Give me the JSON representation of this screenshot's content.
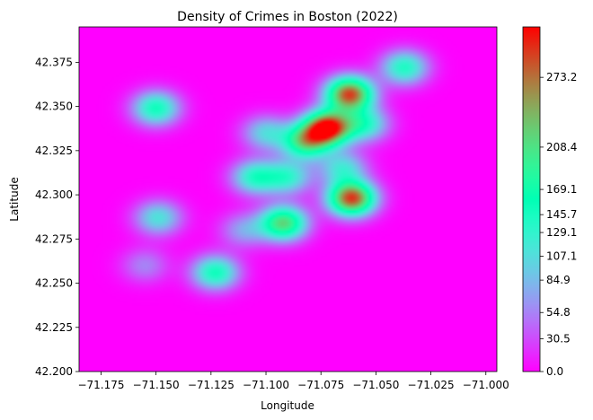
{
  "chart_data": {
    "type": "heatmap",
    "title": "Density of Crimes in Boston (2022)",
    "xlabel": "Longitude",
    "ylabel": "Latitude",
    "xlim": [
      -71.185,
      -70.995
    ],
    "ylim": [
      42.2,
      42.395
    ],
    "x_ticks": [
      -71.175,
      -71.15,
      -71.125,
      -71.1,
      -71.075,
      -71.05,
      -71.025,
      -71.0
    ],
    "x_tick_labels": [
      "−71.175",
      "−71.150",
      "−71.125",
      "−71.100",
      "−71.075",
      "−71.050",
      "−71.025",
      "−71.000"
    ],
    "y_ticks": [
      42.2,
      42.225,
      42.25,
      42.275,
      42.3,
      42.325,
      42.35,
      42.375
    ],
    "y_tick_labels": [
      "42.200",
      "42.225",
      "42.250",
      "42.275",
      "42.300",
      "42.325",
      "42.350",
      "42.375"
    ],
    "grid": false,
    "colormap": "rainbow",
    "colorbar": {
      "ticks": [
        0.0,
        30.5,
        54.8,
        84.9,
        107.1,
        129.1,
        145.7,
        169.1,
        208.4,
        273.2
      ],
      "tick_labels": [
        "0.0",
        "30.5",
        "54.8",
        "84.9",
        "107.1",
        "129.1",
        "145.7",
        "169.1",
        "208.4",
        "273.2"
      ],
      "max": 320
    },
    "density_peaks": [
      {
        "lon": -71.072,
        "lat": 42.338,
        "density": 320
      },
      {
        "lon": -71.062,
        "lat": 42.357,
        "density": 290
      },
      {
        "lon": -71.061,
        "lat": 42.298,
        "density": 295
      },
      {
        "lon": -71.092,
        "lat": 42.284,
        "density": 215
      },
      {
        "lon": -71.082,
        "lat": 42.33,
        "density": 195
      },
      {
        "lon": -71.037,
        "lat": 42.372,
        "density": 140
      },
      {
        "lon": -71.15,
        "lat": 42.349,
        "density": 150
      },
      {
        "lon": -71.123,
        "lat": 42.256,
        "density": 150
      },
      {
        "lon": -71.149,
        "lat": 42.287,
        "density": 110
      },
      {
        "lon": -71.105,
        "lat": 42.31,
        "density": 135
      },
      {
        "lon": -71.055,
        "lat": 42.34,
        "density": 130
      },
      {
        "lon": -71.09,
        "lat": 42.31,
        "density": 120
      },
      {
        "lon": -71.065,
        "lat": 42.315,
        "density": 110
      },
      {
        "lon": -71.1,
        "lat": 42.335,
        "density": 100
      },
      {
        "lon": -71.155,
        "lat": 42.26,
        "density": 55
      },
      {
        "lon": -71.11,
        "lat": 42.28,
        "density": 70
      }
    ]
  }
}
